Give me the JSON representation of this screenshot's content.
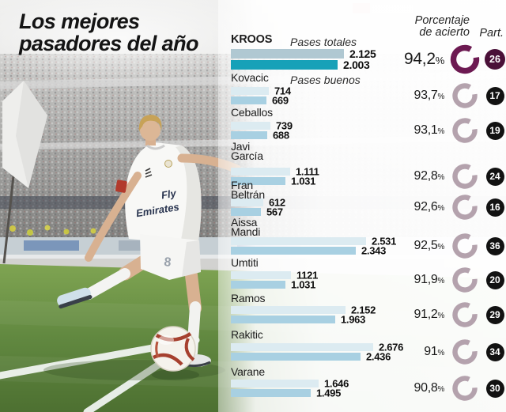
{
  "title": {
    "line1": "Los mejores",
    "line2": "pasadores del año"
  },
  "headers": {
    "accuracy_line1": "Porcentaje",
    "accuracy_line2": "de acierto",
    "matches": "Part."
  },
  "photo": {
    "shirt_line1": "Fly",
    "shirt_line2": "Emirates",
    "shorts_number": "8"
  },
  "chart_data": {
    "type": "bar",
    "title": "Los mejores pasadores del año",
    "series": [
      "Pases totales",
      "Pases buenos"
    ],
    "series_labels": {
      "totales": "Pases totales",
      "buenos": "Pases buenos"
    },
    "percent_suffix": "%",
    "legend_position": "inline-top",
    "xlim": [
      0,
      2676
    ],
    "players": [
      {
        "name": "KROOS",
        "totales_label": "2.125",
        "totales": 2125,
        "buenos_label": "2.003",
        "buenos": 2003,
        "pct_label": "94,2",
        "pct": 94.2,
        "part": "26",
        "highlight": true
      },
      {
        "name": "Kovacic",
        "totales_label": "714",
        "totales": 714,
        "buenos_label": "669",
        "buenos": 669,
        "pct_label": "93,7",
        "pct": 93.7,
        "part": "17",
        "highlight": false
      },
      {
        "name": "Ceballos",
        "totales_label": "739",
        "totales": 739,
        "buenos_label": "688",
        "buenos": 688,
        "pct_label": "93,1",
        "pct": 93.1,
        "part": "19",
        "highlight": false
      },
      {
        "name": "Javi García",
        "totales_label": "1.111",
        "totales": 1111,
        "buenos_label": "1.031",
        "buenos": 1031,
        "pct_label": "92,8",
        "pct": 92.8,
        "part": "24",
        "highlight": false
      },
      {
        "name": "Fran Beltrán",
        "totales_label": "612",
        "totales": 612,
        "buenos_label": "567",
        "buenos": 567,
        "pct_label": "92,6",
        "pct": 92.6,
        "part": "16",
        "highlight": false
      },
      {
        "name": "Aissa Mandi",
        "totales_label": "2.531",
        "totales": 2531,
        "buenos_label": "2.343",
        "buenos": 2343,
        "pct_label": "92,5",
        "pct": 92.5,
        "part": "36",
        "highlight": false
      },
      {
        "name": "Umtiti",
        "totales_label": "1121",
        "totales": 1121,
        "buenos_label": "1.031",
        "buenos": 1031,
        "pct_label": "91,9",
        "pct": 91.9,
        "part": "20",
        "highlight": false
      },
      {
        "name": "Ramos",
        "totales_label": "2.152",
        "totales": 2152,
        "buenos_label": "1.963",
        "buenos": 1963,
        "pct_label": "91,2",
        "pct": 91.2,
        "part": "29",
        "highlight": false
      },
      {
        "name": "Rakitic",
        "totales_label": "2.676",
        "totales": 2676,
        "buenos_label": "2.436",
        "buenos": 2436,
        "pct_label": "91",
        "pct": 91.0,
        "part": "34",
        "highlight": false
      },
      {
        "name": "Varane",
        "totales_label": "1.646",
        "totales": 1646,
        "buenos_label": "1.495",
        "buenos": 1495,
        "pct_label": "90,8",
        "pct": 90.8,
        "part": "30",
        "highlight": false
      }
    ],
    "colors": {
      "highlight_totales": "#b0c8d2",
      "highlight_buenos": "#17a1b8",
      "totales": "#dcebf1",
      "buenos": "#a8d0e2",
      "donut_highlight": "#6d1a52",
      "donut": "#b4a2ad",
      "badge_highlight": "#4a1038",
      "badge": "#121212",
      "pct_text": "#1a1a1a"
    }
  }
}
